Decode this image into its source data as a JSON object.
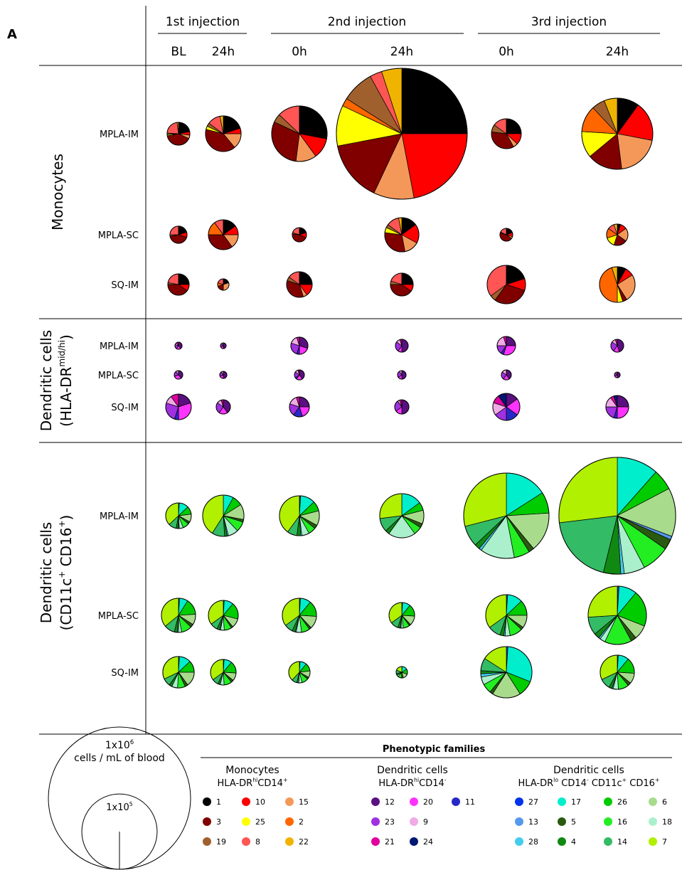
{
  "panel_label": "A",
  "injections": [
    "1st injection",
    "2nd injection",
    "3rd injection"
  ],
  "timepoints": [
    "BL",
    "24h",
    "0h",
    "24h",
    "0h",
    "24h"
  ],
  "chart_data": [
    {
      "type": "pie",
      "title": [
        [
          "Monocytes"
        ]
      ],
      "legend": {
        "title": "Monocytes",
        "subtitle": [
          "HLA-DR",
          "hi",
          "CD14",
          "+"
        ],
        "clusters": [
          [
            {
              "id": "1",
              "color": "#000000"
            },
            {
              "id": "10",
              "color": "#ff0000"
            },
            {
              "id": "15",
              "color": "#f4985a"
            }
          ],
          [
            {
              "id": "3",
              "color": "#800000"
            },
            {
              "id": "25",
              "color": "#ffff00"
            },
            {
              "id": "2",
              "color": "#ff6600"
            }
          ],
          [
            {
              "id": "19",
              "color": "#a0602d"
            },
            {
              "id": "8",
              "color": "#ff5555"
            },
            {
              "id": "22",
              "color": "#f0b400"
            }
          ]
        ]
      },
      "rows": [
        {
          "name": "MPLA-IM",
          "totals": [
            1320,
            6600,
            33000,
            740000,
            3500,
            81000
          ],
          "pies": [
            [
              22,
              5,
              5,
              40,
              2,
              0,
              2,
              22,
              2
            ],
            [
              20,
              5,
              14,
              40,
              3,
              0,
              3,
              12,
              3
            ],
            [
              28,
              12,
              12,
              30,
              0,
              0,
              5,
              13,
              0
            ],
            [
              25,
              22,
              10,
              15,
              10,
              2,
              8,
              3,
              5
            ],
            [
              25,
              12,
              5,
              35,
              0,
              0,
              8,
              15,
              0
            ],
            [
              10,
              18,
              20,
              16,
              12,
              12,
              6,
              0,
              6
            ]
          ]
        },
        {
          "name": "MPLA-SC",
          "totals": [
            470,
            3500,
            240,
            5700,
            164,
            1040
          ],
          "pies": [
            [
              20,
              10,
              0,
              42,
              0,
              0,
              3,
              25,
              0
            ],
            [
              15,
              10,
              15,
              35,
              0,
              15,
              0,
              10,
              0
            ],
            [
              20,
              12,
              0,
              45,
              0,
              0,
              3,
              20,
              0
            ],
            [
              15,
              18,
              14,
              30,
              5,
              0,
              3,
              12,
              3
            ],
            [
              20,
              10,
              5,
              45,
              0,
              0,
              2,
              18,
              0
            ],
            [
              5,
              10,
              20,
              20,
              15,
              15,
              0,
              10,
              5
            ]
          ]
        },
        {
          "name": "SQ-IM",
          "totals": [
            1040,
            107,
            2000,
            1320,
            8700,
            6600
          ],
          "pies": [
            [
              25,
              10,
              0,
              40,
              0,
              0,
              3,
              22,
              0
            ],
            [
              20,
              0,
              30,
              20,
              0,
              10,
              0,
              20,
              0
            ],
            [
              25,
              15,
              5,
              35,
              0,
              0,
              5,
              15,
              0
            ],
            [
              25,
              10,
              0,
              40,
              0,
              0,
              5,
              20,
              0
            ],
            [
              20,
              10,
              0,
              30,
              0,
              0,
              5,
              35,
              0
            ],
            [
              8,
              8,
              25,
              4,
              5,
              45,
              0,
              0,
              5
            ]
          ]
        }
      ]
    },
    {
      "type": "pie",
      "title": [
        [
          "Dendritic cells"
        ],
        [
          "(HLA-DR",
          "mid/hi",
          ")"
        ]
      ],
      "legend": {
        "title": "Dendritic cells",
        "subtitle": [
          "HLA-DR",
          "hi",
          "CD14",
          "-"
        ],
        "clusters": [
          [
            {
              "id": "12",
              "color": "#5a1080"
            },
            {
              "id": "20",
              "color": "#ff33ff"
            },
            {
              "id": "11",
              "color": "#2828c8"
            }
          ],
          [
            {
              "id": "23",
              "color": "#a030e0"
            },
            {
              "id": "9",
              "color": "#f0aae6"
            }
          ],
          [
            {
              "id": "21",
              "color": "#e000a0"
            },
            {
              "id": "24",
              "color": "#001870"
            }
          ]
        ]
      },
      "rows": [
        {
          "name": "MPLA-IM",
          "totals": [
            20,
            9,
            470,
            164,
            620,
            164
          ],
          "pies": [
            [
              40,
              20,
              0,
              20,
              10,
              10,
              0
            ],
            [
              50,
              20,
              0,
              20,
              10,
              0,
              0
            ],
            [
              30,
              20,
              5,
              25,
              15,
              5,
              0
            ],
            [
              50,
              10,
              0,
              25,
              10,
              5,
              0
            ],
            [
              25,
              30,
              5,
              15,
              20,
              5,
              0
            ],
            [
              45,
              15,
              0,
              25,
              10,
              5,
              0
            ]
          ]
        },
        {
          "name": "MPLA-SC",
          "totals": [
            38,
            20,
            66,
            38,
            66,
            9
          ],
          "pies": [
            [
              40,
              30,
              0,
              20,
              10,
              0,
              0
            ],
            [
              50,
              20,
              0,
              20,
              10,
              0,
              0
            ],
            [
              40,
              20,
              5,
              20,
              10,
              5,
              0
            ],
            [
              50,
              15,
              0,
              25,
              10,
              0,
              0
            ],
            [
              40,
              20,
              0,
              25,
              15,
              0,
              0
            ],
            [
              50,
              20,
              0,
              20,
              10,
              0,
              0
            ]
          ]
        },
        {
          "name": "SQ-IM",
          "totals": [
            2000,
            240,
            810,
            240,
            2450,
            1320
          ],
          "pies": [
            [
              20,
              30,
              5,
              25,
              10,
              10,
              0
            ],
            [
              40,
              20,
              0,
              25,
              10,
              5,
              0
            ],
            [
              25,
              20,
              15,
              20,
              15,
              5,
              0
            ],
            [
              50,
              15,
              0,
              25,
              5,
              5,
              0
            ],
            [
              15,
              20,
              15,
              15,
              15,
              10,
              10
            ],
            [
              25,
              25,
              5,
              20,
              15,
              5,
              5
            ]
          ]
        }
      ]
    },
    {
      "type": "pie",
      "title": [
        [
          "Dendritic cells"
        ],
        [
          "(CD11c",
          "+",
          " CD16",
          "+",
          ")"
        ]
      ],
      "legend": {
        "title": "Dendritic cells",
        "subtitle": [
          "HLA-DR",
          "lo",
          " CD14",
          "-",
          " CD11c",
          "+",
          " CD16",
          "+"
        ],
        "clusters": [
          [
            {
              "id": "27",
              "color": "#0033ee"
            },
            {
              "id": "17",
              "color": "#00eecc"
            },
            {
              "id": "26",
              "color": "#00cc00"
            },
            {
              "id": "6",
              "color": "#a8dc8c"
            }
          ],
          [
            {
              "id": "13",
              "color": "#5599ee"
            },
            {
              "id": "5",
              "color": "#2a5a10"
            },
            {
              "id": "16",
              "color": "#22ee22"
            },
            {
              "id": "18",
              "color": "#aaf0cc"
            }
          ],
          [
            {
              "id": "28",
              "color": "#44ccee"
            },
            {
              "id": "4",
              "color": "#118811"
            },
            {
              "id": "14",
              "color": "#33bb66"
            },
            {
              "id": "7",
              "color": "#b0f000"
            }
          ]
        ]
      },
      "rows": [
        {
          "name": "MPLA-IM",
          "totals": [
            2000,
            11300,
            10000,
            14400,
            157000,
            490000
          ],
          "pies": [
            [
              1,
              12,
              10,
              10,
              0,
              3,
              8,
              5,
              1,
              3,
              10,
              37
            ],
            [
              0,
              8,
              8,
              12,
              0,
              2,
              8,
              8,
              1,
              2,
              10,
              41
            ],
            [
              1,
              12,
              8,
              12,
              0,
              3,
              6,
              6,
              1,
              3,
              8,
              40
            ],
            [
              0,
              15,
              6,
              10,
              0,
              3,
              6,
              20,
              0,
              3,
              10,
              27
            ],
            [
              0,
              16,
              8,
              15,
              0,
              2,
              6,
              13,
              1,
              2,
              8,
              29
            ],
            [
              0,
              12,
              6,
              14,
              1,
              3,
              8,
              6,
              1,
              5,
              20,
              28
            ]
          ]
        },
        {
          "name": "MPLA-SC",
          "totals": [
            5700,
            3500,
            5700,
            2000,
            11300,
            39600
          ],
          "pies": [
            [
              1,
              8,
              15,
              10,
              0,
              3,
              10,
              3,
              1,
              3,
              10,
              36
            ],
            [
              1,
              10,
              18,
              10,
              0,
              2,
              8,
              4,
              1,
              3,
              8,
              35
            ],
            [
              1,
              10,
              15,
              12,
              0,
              2,
              8,
              5,
              1,
              3,
              8,
              35
            ],
            [
              1,
              10,
              15,
              12,
              0,
              2,
              8,
              3,
              1,
              3,
              10,
              35
            ],
            [
              1,
              12,
              12,
              10,
              0,
              2,
              10,
              4,
              1,
              3,
              10,
              35
            ],
            [
              1,
              10,
              20,
              8,
              0,
              3,
              15,
              3,
              1,
              3,
              10,
              26
            ]
          ]
        },
        {
          "name": "SQ-IM",
          "totals": [
            4200,
            2000,
            1040,
            107,
            24800,
            5700
          ],
          "pies": [
            [
              1,
              12,
              12,
              15,
              0,
              3,
              8,
              6,
              0,
              3,
              8,
              32
            ],
            [
              1,
              10,
              15,
              10,
              0,
              3,
              10,
              5,
              0,
              3,
              8,
              35
            ],
            [
              1,
              10,
              12,
              10,
              0,
              3,
              10,
              5,
              0,
              3,
              8,
              38
            ],
            [
              1,
              15,
              15,
              15,
              0,
              5,
              10,
              5,
              0,
              5,
              10,
              19
            ],
            [
              1,
              30,
              10,
              18,
              0,
              2,
              6,
              5,
              2,
              2,
              8,
              16
            ],
            [
              1,
              10,
              15,
              10,
              0,
              3,
              10,
              5,
              1,
              3,
              10,
              32
            ]
          ]
        }
      ]
    }
  ],
  "legend_title": "Phenotypic families",
  "size_legend": {
    "unit": "cells / mL of blood",
    "circles": [
      {
        "value": 1000000,
        "label": [
          "1x10",
          "6"
        ]
      },
      {
        "value": 100000,
        "label": [
          "1x10",
          "5"
        ]
      }
    ]
  }
}
